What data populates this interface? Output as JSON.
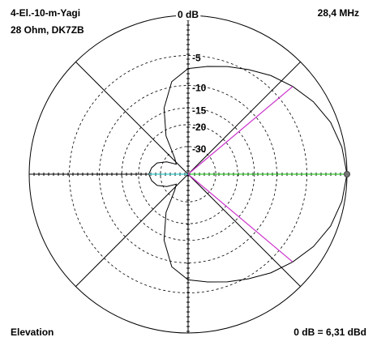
{
  "chart_data": {
    "type": "polar",
    "title": "4-El.-10-m-Yagi",
    "subtitle": "28 Ohm, DK7ZB",
    "frequency": "28,4 MHz",
    "plot_label": "Elevation",
    "reference": "0 dB = 6,31 dBd",
    "rscale": "arrl",
    "rlim": [
      -40,
      0
    ],
    "rticks": [
      {
        "value": 0,
        "label": "0 dB"
      },
      -5,
      -10,
      -15,
      -20,
      -30
    ],
    "grid": true,
    "theta": [
      0,
      10,
      20,
      30,
      40,
      50,
      60,
      70,
      80,
      90,
      100,
      110,
      120,
      130,
      140,
      150,
      160,
      170,
      180,
      190,
      200,
      210,
      220,
      230,
      240,
      250,
      260,
      270,
      280,
      290,
      300,
      310,
      320,
      330,
      340,
      350
    ],
    "series": [
      {
        "color": "#000000",
        "values": [
          0,
          -0.3,
          -0.8,
          -1.6,
          -2.6,
          -3.6,
          -4.7,
          -5.6,
          -6.4,
          -7,
          -9,
          -14,
          -22,
          -35,
          -40,
          -32,
          -27,
          -25,
          -24,
          -25,
          -27,
          -32,
          -40,
          -35,
          -22,
          -14,
          -9,
          -7,
          -6.4,
          -5.6,
          -4.7,
          -3.6,
          -2.6,
          -1.6,
          -0.8,
          -0.3
        ]
      }
    ],
    "markers": [
      {
        "theta": 0,
        "color": "#33cc33"
      },
      {
        "theta": 40,
        "color": "#cc33cc"
      },
      {
        "theta": 320,
        "color": "#cc33cc"
      },
      {
        "theta": 180,
        "color": "#33cccc"
      }
    ]
  }
}
